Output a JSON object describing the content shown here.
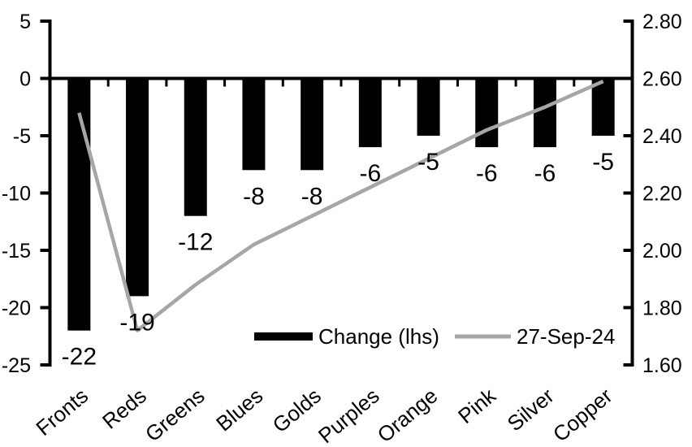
{
  "chart_data": {
    "type": "bar",
    "subtype": "bar-and-line-dual-axis",
    "title": "",
    "categories": [
      "Fronts",
      "Reds",
      "Greens",
      "Blues",
      "Golds",
      "Purples",
      "Orange",
      "Pink",
      "Silver",
      "Copper"
    ],
    "series": [
      {
        "name": "Change (lhs)",
        "type": "bar",
        "axis": "left",
        "values": [
          -22,
          -19,
          -12,
          -8,
          -8,
          -6,
          -5,
          -6,
          -6,
          -5
        ],
        "data_labels": [
          "-22",
          "-19",
          "-12",
          "-8",
          "-8",
          "-6",
          "-5",
          "-6",
          "-6",
          "-5"
        ],
        "color": "#000000"
      },
      {
        "name": "27-Sep-24",
        "type": "line",
        "axis": "right",
        "values": [
          2.48,
          1.72,
          1.88,
          2.02,
          2.12,
          2.22,
          2.32,
          2.42,
          2.5,
          2.59
        ],
        "color": "#a6a6a6"
      }
    ],
    "left_axis": {
      "max": 5,
      "min": -25,
      "tick_step": 5,
      "ticks": [
        "5",
        "0",
        "-5",
        "-10",
        "-15",
        "-20",
        "-25"
      ]
    },
    "right_axis": {
      "max": 2.8,
      "min": 1.6,
      "tick_step": 0.2,
      "ticks": [
        "2.80",
        "2.60",
        "2.40",
        "2.20",
        "2.00",
        "1.80",
        "1.60"
      ]
    },
    "legend": {
      "position": "inside-bottom",
      "entries": [
        "Change (lhs)",
        "27-Sep-24"
      ]
    },
    "grid": false,
    "colors": {
      "bar": "#000000",
      "line": "#a6a6a6",
      "axis": "#000000",
      "text": "#000000",
      "background": "#ffffff"
    }
  }
}
